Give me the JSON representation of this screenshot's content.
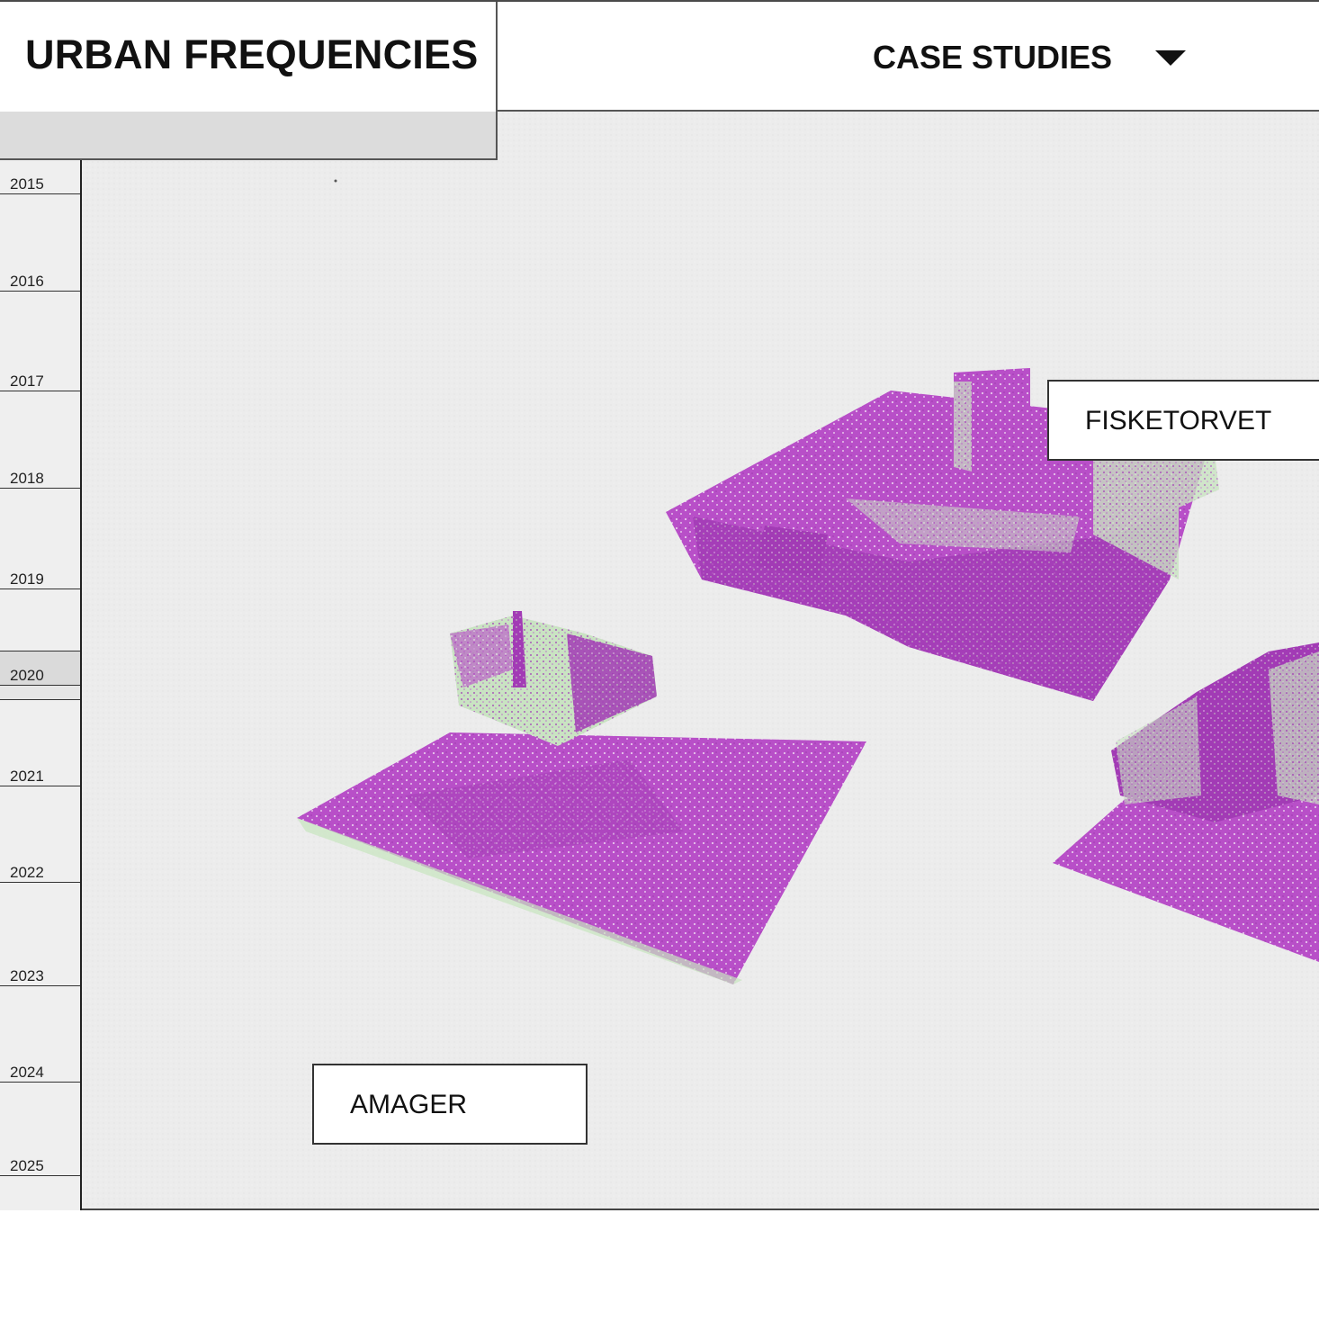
{
  "header": {
    "title": "URBAN FREQUENCIES",
    "nav_dropdown": {
      "label": "CASE STUDIES",
      "icon": "caret-down-icon"
    }
  },
  "timeline": {
    "years": [
      "2015",
      "2016",
      "2017",
      "2018",
      "2019",
      "2020",
      "2021",
      "2022",
      "2023",
      "2024",
      "2025"
    ],
    "selected_year": "2020"
  },
  "map": {
    "sites": [
      {
        "label": "FISKETORVET"
      },
      {
        "label": "AMAGER"
      }
    ]
  },
  "colors": {
    "point_cloud_primary": "#b84fc8",
    "point_cloud_highlight": "#c7e8bf",
    "background": "#e9e9e9",
    "text": "#111111"
  }
}
